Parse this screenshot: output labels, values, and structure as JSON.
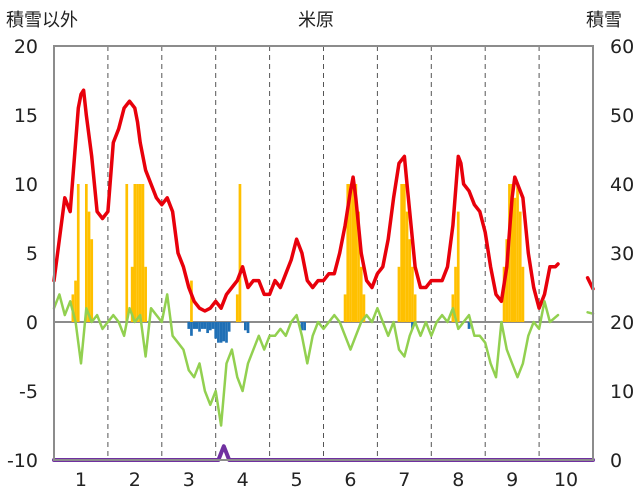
{
  "chart_data": {
    "type": "bar+line",
    "title": "米原",
    "ylabel_left": "積雪以外",
    "ylabel_right": "積雪",
    "ylim_left": [
      -10,
      20
    ],
    "yticks_left": [
      -10,
      -5,
      0,
      5,
      10,
      15,
      20
    ],
    "ylim_right": [
      0,
      60
    ],
    "yticks_right": [
      0,
      10,
      20,
      30,
      40,
      50,
      60
    ],
    "x_range": [
      0.5,
      10.5
    ],
    "x_ticks": [
      1,
      2,
      3,
      4,
      5,
      6,
      7,
      8,
      9,
      10
    ],
    "x_tick_labels": [
      "1",
      "2",
      "3",
      "4",
      "5",
      "6",
      "7",
      "8",
      "9",
      "10"
    ],
    "grid": "vertical dashed at each label boundary",
    "series": [
      {
        "color": "#e8000b",
        "style": "line",
        "axis": "left",
        "x": [
          0.5,
          0.6,
          0.7,
          0.8,
          0.9,
          0.95,
          1.0,
          1.05,
          1.1,
          1.2,
          1.3,
          1.4,
          1.5,
          1.6,
          1.7,
          1.8,
          1.9,
          2.0,
          2.05,
          2.1,
          2.2,
          2.3,
          2.4,
          2.5,
          2.6,
          2.7,
          2.8,
          2.9,
          3.0,
          3.1,
          3.2,
          3.3,
          3.4,
          3.5,
          3.6,
          3.7,
          3.8,
          3.9,
          4.0,
          4.1,
          4.2,
          4.3,
          4.4,
          4.5,
          4.6,
          4.7,
          4.8,
          4.9,
          5.0,
          5.1,
          5.2,
          5.3,
          5.4,
          5.5,
          5.6,
          5.7,
          5.8,
          5.9,
          6.0,
          6.05,
          6.1,
          6.2,
          6.3,
          6.4,
          6.5,
          6.6,
          6.7,
          6.8,
          6.9,
          7.0,
          7.05,
          7.1,
          7.2,
          7.3,
          7.4,
          7.5,
          7.6,
          7.7,
          7.8,
          7.9,
          8.0,
          8.05,
          8.1,
          8.2,
          8.3,
          8.4,
          8.5,
          8.6,
          8.7,
          8.8,
          8.9,
          9.0,
          9.05,
          9.1,
          9.2,
          9.3,
          9.4,
          9.5,
          9.6,
          9.7,
          9.8,
          9.85,
          10.4,
          10.5
        ],
        "y": [
          3,
          6,
          9,
          8,
          13,
          15.5,
          16.5,
          16.8,
          15,
          12,
          8,
          7.5,
          8,
          13,
          14,
          15.5,
          16,
          15.5,
          14.5,
          13,
          11,
          10,
          9,
          8.5,
          9,
          8,
          5,
          4,
          2.5,
          1.5,
          1,
          0.8,
          1,
          1.5,
          1,
          2,
          2.5,
          3,
          4,
          2.5,
          3,
          3,
          2,
          2,
          3,
          2.5,
          3.5,
          4.5,
          6,
          5,
          3,
          2.5,
          3,
          3,
          3.5,
          3.5,
          5,
          7,
          9.5,
          10.5,
          9,
          5,
          3,
          2.5,
          3.5,
          4,
          6,
          9,
          11.5,
          12,
          10,
          8,
          4,
          2.5,
          2.5,
          3,
          3,
          3,
          4,
          7,
          12,
          11.5,
          10,
          9.5,
          8.5,
          8,
          6.5,
          4,
          2,
          1.5,
          4,
          9,
          10.5,
          10,
          9,
          5,
          2.5,
          1,
          2,
          4,
          4,
          4.2,
          3.2,
          2.4
        ]
      },
      {
        "color": "#92d050",
        "style": "line",
        "axis": "left",
        "x": [
          0.5,
          0.6,
          0.7,
          0.8,
          0.9,
          1.0,
          1.1,
          1.2,
          1.3,
          1.4,
          1.5,
          1.6,
          1.7,
          1.8,
          1.9,
          2.0,
          2.1,
          2.2,
          2.3,
          2.4,
          2.5,
          2.6,
          2.7,
          2.8,
          2.9,
          3.0,
          3.1,
          3.2,
          3.3,
          3.4,
          3.5,
          3.6,
          3.7,
          3.8,
          3.9,
          4.0,
          4.1,
          4.2,
          4.3,
          4.4,
          4.5,
          4.6,
          4.7,
          4.8,
          4.9,
          5.0,
          5.1,
          5.2,
          5.3,
          5.4,
          5.5,
          5.6,
          5.7,
          5.8,
          5.9,
          6.0,
          6.1,
          6.2,
          6.3,
          6.4,
          6.5,
          6.6,
          6.7,
          6.8,
          6.9,
          7.0,
          7.1,
          7.2,
          7.3,
          7.4,
          7.5,
          7.6,
          7.7,
          7.8,
          7.9,
          8.0,
          8.1,
          8.2,
          8.3,
          8.4,
          8.5,
          8.6,
          8.7,
          8.8,
          8.9,
          9.0,
          9.1,
          9.2,
          9.3,
          9.4,
          9.5,
          9.6,
          9.7,
          9.85,
          10.4,
          10.5
        ],
        "y": [
          1,
          2,
          0.5,
          1.5,
          0,
          -3,
          1,
          0,
          0.5,
          -0.5,
          0,
          0.5,
          0,
          -1,
          1,
          0,
          0.5,
          -2.5,
          1,
          0.5,
          0,
          2,
          -1,
          -1.5,
          -2,
          -3.5,
          -4,
          -3,
          -5,
          -6,
          -5,
          -7.5,
          -3,
          -2,
          -4,
          -5,
          -3,
          -2,
          -1,
          -2,
          -1,
          -1,
          -0.5,
          -1,
          0,
          0.5,
          -1,
          -3,
          -1,
          0,
          -0.5,
          0,
          0.5,
          0,
          -1,
          -2,
          -1,
          0,
          0.5,
          0,
          1,
          0,
          -1,
          0,
          -2,
          -2.5,
          -1,
          0,
          -1,
          0,
          -1,
          0,
          0.5,
          0,
          1,
          -0.5,
          0,
          0.5,
          -1,
          -1,
          -1.5,
          -3,
          -4,
          0,
          -2,
          -3,
          -4,
          -3,
          -1,
          0,
          -0.5,
          1.5,
          0,
          0.5,
          0.7,
          0.6
        ]
      },
      {
        "color": "#ffc000",
        "style": "bar",
        "axis": "left",
        "x": [
          0.85,
          0.9,
          0.95,
          1.1,
          1.15,
          1.2,
          1.85,
          1.95,
          2.0,
          2.05,
          2.1,
          2.15,
          2.2,
          3.05,
          3.9,
          3.95,
          5.9,
          5.95,
          6.0,
          6.05,
          6.1,
          6.15,
          6.2,
          6.25,
          6.9,
          6.95,
          7.0,
          7.05,
          7.1,
          7.15,
          7.2,
          7.9,
          7.95,
          8.0,
          8.85,
          8.9,
          8.95,
          9.0,
          9.05,
          9.1,
          9.15,
          9.2
        ],
        "y": [
          2,
          3,
          10,
          10,
          8,
          6,
          10,
          4,
          10,
          10,
          10,
          10,
          4,
          3,
          2,
          10,
          2,
          10,
          10,
          10,
          10,
          8,
          4,
          2,
          4,
          10,
          10,
          8,
          6,
          4,
          2,
          2,
          4,
          8,
          4,
          6,
          10,
          10,
          9,
          10,
          8,
          4
        ]
      },
      {
        "color": "#1f6fb5",
        "style": "bar",
        "axis": "left",
        "x": [
          3.0,
          3.05,
          3.1,
          3.15,
          3.2,
          3.25,
          3.3,
          3.35,
          3.4,
          3.45,
          3.5,
          3.55,
          3.6,
          3.65,
          3.7,
          3.75,
          4.05,
          4.1,
          5.1,
          5.15,
          7.15,
          8.2
        ],
        "y": [
          -0.5,
          -1,
          -0.5,
          -0.5,
          -0.7,
          -0.5,
          -0.5,
          -0.8,
          -0.6,
          -0.5,
          -1.2,
          -1.5,
          -1.5,
          -1.4,
          -1.5,
          -0.7,
          -0.6,
          -0.8,
          -0.6,
          -0.6,
          -0.5,
          -0.5
        ]
      },
      {
        "color": "#7030a0",
        "style": "line",
        "axis": "right",
        "x": [
          0.5,
          3.55,
          3.6,
          3.65,
          3.7,
          3.75,
          10.5
        ],
        "y": [
          0,
          0,
          1,
          2,
          1,
          0,
          0
        ]
      }
    ]
  }
}
